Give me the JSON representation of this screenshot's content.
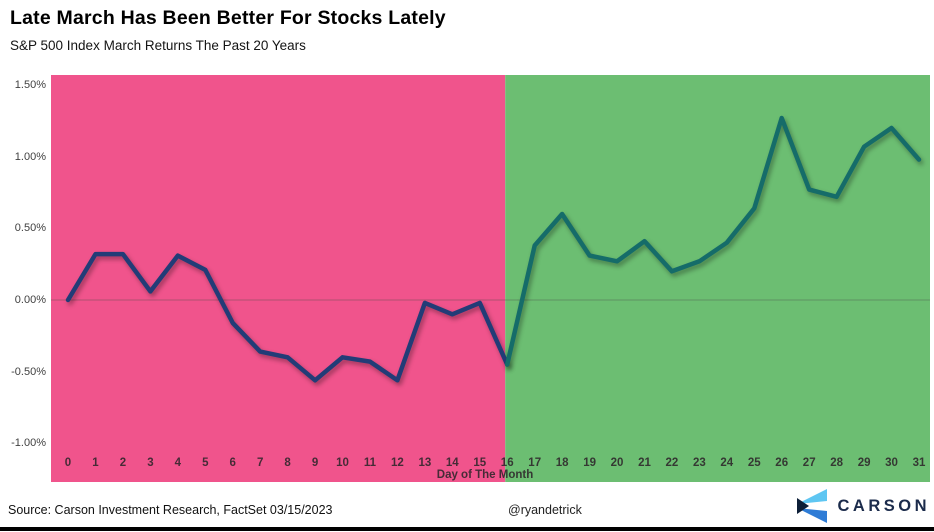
{
  "header": {},
  "footer": {
    "source": "Source: Carson Investment Research, FactSet 03/15/2023",
    "handle": "@ryandetrick",
    "brand": "CARSON"
  },
  "colors": {
    "early_region": "#F0548C",
    "late_region": "#6CBE72",
    "early_line": "#223C77",
    "late_line": "#156C69",
    "zero_line": "rgba(70,70,70,0.38)",
    "brand_navy": "#1b2b4b",
    "brand_light_blue": "#5EC6F2",
    "brand_mid_blue": "#2E7CD6",
    "brand_dark_triangle": "#0D1F38"
  },
  "chart_data": {
    "type": "line",
    "title": "Late March Has Been Better For Stocks Lately",
    "subtitle": "S&P 500 Index March Returns The Past 20 Years",
    "xlabel": "Day of The Month",
    "ylabel": "",
    "x": [
      0,
      1,
      2,
      3,
      4,
      5,
      6,
      7,
      8,
      9,
      10,
      11,
      12,
      13,
      14,
      15,
      16,
      17,
      18,
      19,
      20,
      21,
      22,
      23,
      24,
      25,
      26,
      27,
      28,
      29,
      30,
      31
    ],
    "values": [
      0.0,
      0.32,
      0.32,
      0.06,
      0.31,
      0.21,
      -0.16,
      -0.36,
      -0.4,
      -0.56,
      -0.4,
      -0.43,
      -0.56,
      -0.02,
      -0.1,
      -0.02,
      -0.45,
      0.38,
      0.6,
      0.31,
      0.27,
      0.41,
      0.2,
      0.27,
      0.4,
      0.64,
      1.27,
      0.77,
      0.72,
      1.07,
      1.2,
      0.98
    ],
    "ylim": [
      -1.27,
      1.57
    ],
    "yticks": {
      "labels": [
        "1.50%",
        "1.00%",
        "0.50%",
        "0.00%",
        "-0.50%",
        "-1.00%"
      ],
      "values": [
        1.5,
        1.0,
        0.5,
        0.0,
        -0.5,
        -1.0
      ]
    },
    "grid": "zero-line-only",
    "legend": "none",
    "split_day": 16,
    "series": [
      {
        "name": "early-march (days 0-16)",
        "region_color": "#F0548C",
        "line_color": "#223C77"
      },
      {
        "name": "late-march (days 16-31)",
        "region_color": "#6CBE72",
        "line_color": "#156C69"
      }
    ]
  }
}
